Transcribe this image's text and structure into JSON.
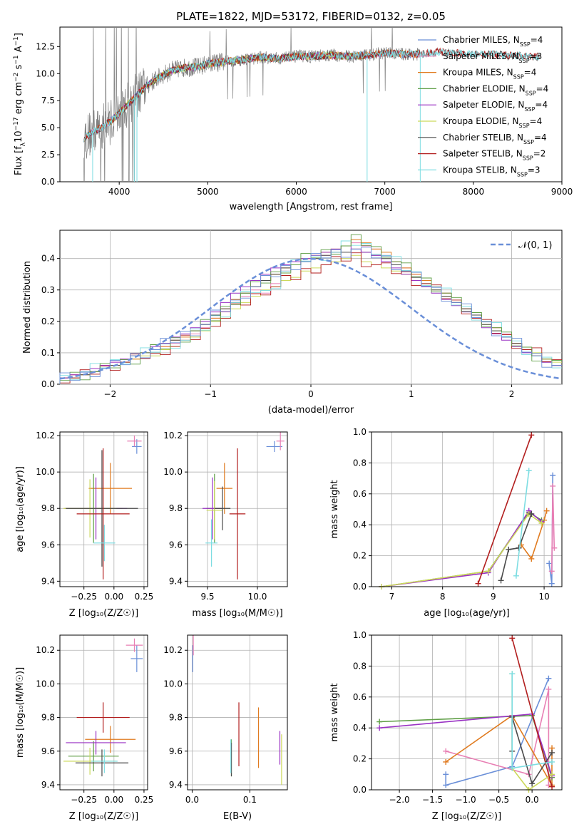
{
  "title": "PLATE=1822, MJD=53172, FIBERID=0132, z=0.05",
  "colors": {
    "Chabrier MILES": "#6a8fd8",
    "Salpeter MILES": "#e87fb4",
    "Kroupa MILES": "#e07b20",
    "Chabrier ELODIE": "#5f9e46",
    "Salpeter ELODIE": "#9a32c4",
    "Kroupa ELODIE": "#ccd95a",
    "Chabrier STELIB": "#4a4a4a",
    "Salpeter STELIB": "#b21e1e",
    "Kroupa STELIB": "#7ddde2",
    "data": "#808080",
    "gaussian": "#6a8fd8"
  },
  "chart_data": [
    {
      "id": "spectrum",
      "type": "line",
      "title": "PLATE=1822, MJD=53172, FIBERID=0132, z=0.05",
      "xlabel": "wavelength [Angstrom, rest frame]",
      "ylabel_parts": [
        "Flux [f",
        "λ",
        "10",
        "−17",
        " erg cm",
        "−2",
        " s",
        "−1",
        " A",
        "−1",
        "]"
      ],
      "xlim": [
        3330,
        9000
      ],
      "ylim": [
        0,
        14.3
      ],
      "xticks": [
        4000,
        5000,
        6000,
        7000,
        8000,
        9000
      ],
      "yticks": [
        0.0,
        2.5,
        5.0,
        7.5,
        10.0,
        12.5
      ],
      "legend_position": "right",
      "legend": [
        {
          "name": "Chabrier MILES",
          "nssp": "4"
        },
        {
          "name": "Salpeter MILES",
          "nssp": "3"
        },
        {
          "name": "Kroupa MILES",
          "nssp": "4"
        },
        {
          "name": "Chabrier ELODIE",
          "nssp": "4"
        },
        {
          "name": "Salpeter ELODIE",
          "nssp": "4"
        },
        {
          "name": "Kroupa ELODIE",
          "nssp": "4"
        },
        {
          "name": "Chabrier STELIB",
          "nssp": "4"
        },
        {
          "name": "Salpeter STELIB",
          "nssp": "2"
        },
        {
          "name": "Kroupa STELIB",
          "nssp": "3"
        }
      ],
      "continuum": {
        "x": [
          3600,
          3700,
          3800,
          3900,
          4000,
          4100,
          4200,
          4300,
          4400,
          4500,
          4600,
          4700,
          4800,
          4900,
          5000,
          5200,
          5400,
          5600,
          5800,
          6000,
          6200,
          6400,
          6600,
          6800,
          7000,
          7200,
          7400,
          7600,
          7800,
          8000,
          8200,
          8400,
          8600,
          8750
        ],
        "y": [
          4.0,
          4.6,
          5.0,
          5.6,
          6.3,
          7.2,
          8.0,
          8.8,
          9.4,
          9.9,
          10.3,
          10.5,
          10.6,
          10.6,
          10.9,
          11.1,
          11.3,
          11.5,
          11.4,
          11.6,
          11.6,
          11.7,
          11.6,
          11.7,
          11.9,
          11.8,
          11.8,
          12.0,
          11.9,
          11.8,
          11.8,
          11.7,
          11.6,
          11.5
        ]
      }
    },
    {
      "id": "residuals",
      "type": "bar",
      "xlabel": "(data-model)/error",
      "ylabel": "Normed distribution",
      "xlim": [
        -2.5,
        2.5
      ],
      "ylim": [
        0,
        0.49
      ],
      "xticks": [
        -2,
        -1,
        0,
        1,
        2
      ],
      "yticks": [
        0.0,
        0.1,
        0.2,
        0.3,
        0.4
      ],
      "legend_label": "𝒩(0, 1)",
      "legend_position": "top-right",
      "bins": {
        "start": -2.5,
        "width": 0.1
      },
      "series": [
        {
          "values": [
            0.02,
            0.02,
            0.03,
            0.04,
            0.05,
            0.06,
            0.07,
            0.08,
            0.09,
            0.09,
            0.11,
            0.12,
            0.14,
            0.15,
            0.17,
            0.2,
            0.21,
            0.24,
            0.26,
            0.28,
            0.3,
            0.31,
            0.33,
            0.34,
            0.36,
            0.37,
            0.38,
            0.39,
            0.4,
            0.41,
            0.39,
            0.38,
            0.37,
            0.36,
            0.35,
            0.33,
            0.32,
            0.3,
            0.28,
            0.26,
            0.24,
            0.21,
            0.19,
            0.17,
            0.15,
            0.13,
            0.11,
            0.1,
            0.08,
            0.07
          ]
        },
        {
          "values": [
            0.02,
            0.03,
            0.04,
            0.05,
            0.06,
            0.07,
            0.08,
            0.09,
            0.1,
            0.11,
            0.12,
            0.13,
            0.14,
            0.16,
            0.18,
            0.21,
            0.23,
            0.26,
            0.28,
            0.3,
            0.29,
            0.32,
            0.36,
            0.38,
            0.4,
            0.4,
            0.41,
            0.42,
            0.44,
            0.45,
            0.44,
            0.43,
            0.41,
            0.39,
            0.37,
            0.35,
            0.33,
            0.31,
            0.29,
            0.26,
            0.24,
            0.22,
            0.2,
            0.18,
            0.16,
            0.13,
            0.11,
            0.09,
            0.07,
            0.06
          ]
        },
        {
          "values": [
            0.02,
            0.03,
            0.03,
            0.04,
            0.05,
            0.06,
            0.07,
            0.08,
            0.1,
            0.11,
            0.12,
            0.14,
            0.15,
            0.17,
            0.19,
            0.21,
            0.24,
            0.27,
            0.29,
            0.31,
            0.33,
            0.35,
            0.37,
            0.38,
            0.4,
            0.41,
            0.42,
            0.43,
            0.44,
            0.46,
            0.45,
            0.43,
            0.42,
            0.39,
            0.37,
            0.35,
            0.33,
            0.31,
            0.29,
            0.26,
            0.24,
            0.22,
            0.2,
            0.18,
            0.15,
            0.13,
            0.11,
            0.09,
            0.08,
            0.06
          ]
        },
        {
          "values": [
            0.02,
            0.02,
            0.03,
            0.04,
            0.05,
            0.06,
            0.07,
            0.09,
            0.1,
            0.11,
            0.13,
            0.14,
            0.16,
            0.17,
            0.19,
            0.22,
            0.24,
            0.26,
            0.29,
            0.31,
            0.33,
            0.35,
            0.37,
            0.38,
            0.39,
            0.4,
            0.41,
            0.42,
            0.42,
            0.43,
            0.42,
            0.41,
            0.4,
            0.38,
            0.36,
            0.34,
            0.32,
            0.3,
            0.28,
            0.26,
            0.24,
            0.22,
            0.19,
            0.17,
            0.15,
            0.13,
            0.11,
            0.09,
            0.07,
            0.06
          ]
        },
        {
          "values": [
            0.02,
            0.03,
            0.04,
            0.05,
            0.06,
            0.07,
            0.08,
            0.09,
            0.1,
            0.12,
            0.13,
            0.15,
            0.16,
            0.18,
            0.2,
            0.23,
            0.26,
            0.29,
            0.31,
            0.33,
            0.35,
            0.37,
            0.38,
            0.39,
            0.4,
            0.41,
            0.42,
            0.43,
            0.44,
            0.43,
            0.42,
            0.41,
            0.39,
            0.37,
            0.35,
            0.33,
            0.31,
            0.29,
            0.27,
            0.25,
            0.23,
            0.21,
            0.18,
            0.16,
            0.14,
            0.12,
            0.1,
            0.09,
            0.07,
            0.06
          ]
        }
      ]
    },
    {
      "id": "age-vs-Z",
      "type": "scatter",
      "xlabel": "Z [log₁₀(Z/Z☉)]",
      "ylabel": "age  [log₁₀(age/yr)]",
      "xlim": [
        -0.45,
        0.28
      ],
      "ylim": [
        9.37,
        10.22
      ],
      "xticks": [
        -0.25,
        0.0,
        0.25
      ],
      "yticks": [
        9.4,
        9.6,
        9.8,
        10.0,
        10.2
      ],
      "points": [
        {
          "x": 0.19,
          "y": 10.14,
          "xerr": 0.04,
          "yerr": 0.04
        },
        {
          "x": 0.17,
          "y": 10.17,
          "xerr": 0.06,
          "yerr": 0.03
        },
        {
          "x": -0.03,
          "y": 9.91,
          "xerr": 0.18,
          "yerr": 0.14
        },
        {
          "x": -0.17,
          "y": 9.8,
          "xerr": 0.24,
          "yerr": 0.19
        },
        {
          "x": -0.15,
          "y": 9.8,
          "xerr": 0.26,
          "yerr": 0.17
        },
        {
          "x": -0.2,
          "y": 9.8,
          "xerr": 0.22,
          "yerr": 0.16
        },
        {
          "x": -0.1,
          "y": 9.8,
          "xerr": 0.3,
          "yerr": 0.32
        },
        {
          "x": -0.09,
          "y": 9.77,
          "xerr": 0.22,
          "yerr": 0.36
        },
        {
          "x": -0.08,
          "y": 9.61,
          "xerr": 0.09,
          "yerr": 0.1
        }
      ]
    },
    {
      "id": "age-vs-mass",
      "type": "scatter",
      "xlabel": "mass [log₁₀(M/M☉)]",
      "ylabel": "",
      "xlim": [
        9.3,
        10.3
      ],
      "ylim": [
        9.37,
        10.22
      ],
      "xticks": [
        9.5,
        10.0
      ],
      "yticks": [
        9.4,
        9.6,
        9.8,
        10.0,
        10.2
      ],
      "points": [
        {
          "x": 10.17,
          "y": 10.14,
          "xerr": 0.08,
          "yerr": 0.03
        },
        {
          "x": 10.23,
          "y": 10.17,
          "xerr": 0.04,
          "yerr": 0.05
        },
        {
          "x": 9.67,
          "y": 9.91,
          "xerr": 0.08,
          "yerr": 0.14
        },
        {
          "x": 9.57,
          "y": 9.8,
          "xerr": 0.08,
          "yerr": 0.19
        },
        {
          "x": 9.55,
          "y": 9.8,
          "xerr": 0.1,
          "yerr": 0.17
        },
        {
          "x": 9.57,
          "y": 9.79,
          "xerr": 0.08,
          "yerr": 0.16
        },
        {
          "x": 9.65,
          "y": 9.8,
          "xerr": 0.08,
          "yerr": 0.12
        },
        {
          "x": 9.8,
          "y": 9.77,
          "xerr": 0.08,
          "yerr": 0.36
        },
        {
          "x": 9.54,
          "y": 9.61,
          "xerr": 0.06,
          "yerr": 0.13
        }
      ]
    },
    {
      "id": "massweight-vs-age",
      "type": "line",
      "xlabel": "age  [log₁₀(age/yr)]",
      "ylabel": "mass weight",
      "xlim": [
        6.6,
        10.35
      ],
      "ylim": [
        0,
        1.0
      ],
      "xticks": [
        7,
        8,
        9,
        10
      ],
      "yticks": [
        0.0,
        0.2,
        0.4,
        0.6,
        0.8,
        1.0
      ],
      "series": [
        {
          "x": [
            10.1,
            10.15,
            10.17
          ],
          "y": [
            0.15,
            0.02,
            0.72
          ]
        },
        {
          "x": [
            10.15,
            10.17,
            10.2
          ],
          "y": [
            0.1,
            0.65,
            0.25
          ]
        },
        {
          "x": [
            9.55,
            9.75,
            10.0,
            10.05
          ],
          "y": [
            0.27,
            0.18,
            0.43,
            0.49
          ]
        },
        {
          "x": [
            6.8,
            8.9,
            9.7,
            9.95
          ],
          "y": [
            0.0,
            0.1,
            0.48,
            0.43
          ]
        },
        {
          "x": [
            6.8,
            8.9,
            9.7,
            9.95
          ],
          "y": [
            0.0,
            0.09,
            0.49,
            0.42
          ]
        },
        {
          "x": [
            6.8,
            8.9,
            9.7,
            9.95
          ],
          "y": [
            0.0,
            0.1,
            0.47,
            0.41
          ]
        },
        {
          "x": [
            9.15,
            9.3,
            9.5,
            9.75
          ],
          "y": [
            0.04,
            0.24,
            0.25,
            0.47
          ]
        },
        {
          "x": [
            8.7,
            9.75
          ],
          "y": [
            0.02,
            0.98
          ]
        },
        {
          "x": [
            9.45,
            9.7
          ],
          "y": [
            0.07,
            0.75
          ]
        }
      ]
    },
    {
      "id": "mass-vs-Z",
      "type": "scatter",
      "xlabel": "Z [log₁₀(Z/Z☉)]",
      "ylabel": "mass [log₁₀(M/M☉)]",
      "xlim": [
        -0.45,
        0.28
      ],
      "ylim": [
        9.37,
        10.29
      ],
      "xticks": [
        -0.25,
        0.0,
        0.25
      ],
      "yticks": [
        9.4,
        9.6,
        9.8,
        10.0,
        10.2
      ],
      "points": [
        {
          "x": 0.19,
          "y": 10.15,
          "xerr": 0.05,
          "yerr": 0.08
        },
        {
          "x": 0.17,
          "y": 10.23,
          "xerr": 0.07,
          "yerr": 0.04
        },
        {
          "x": -0.03,
          "y": 9.67,
          "xerr": 0.21,
          "yerr": 0.08
        },
        {
          "x": -0.17,
          "y": 9.57,
          "xerr": 0.21,
          "yerr": 0.09
        },
        {
          "x": -0.15,
          "y": 9.65,
          "xerr": 0.25,
          "yerr": 0.07
        },
        {
          "x": -0.2,
          "y": 9.54,
          "xerr": 0.22,
          "yerr": 0.08
        },
        {
          "x": -0.1,
          "y": 9.53,
          "xerr": 0.22,
          "yerr": 0.08
        },
        {
          "x": -0.09,
          "y": 9.8,
          "xerr": 0.22,
          "yerr": 0.09
        },
        {
          "x": -0.08,
          "y": 9.54,
          "xerr": 0.11,
          "yerr": 0.07
        }
      ]
    },
    {
      "id": "mass-vs-ebv",
      "type": "scatter",
      "xlabel": "E(B-V)",
      "ylabel": "",
      "xlim": [
        -0.008,
        0.165
      ],
      "ylim": [
        9.37,
        10.29
      ],
      "xticks": [
        0.0,
        0.1
      ],
      "yticks": [
        9.4,
        9.6,
        9.8,
        10.0,
        10.2
      ],
      "points": [
        {
          "x": 0.001,
          "y": 10.15,
          "yerr": 0.08
        },
        {
          "x": 0.002,
          "y": 10.23,
          "yerr": 0.06
        },
        {
          "x": 0.115,
          "y": 9.68,
          "yerr": 0.18
        },
        {
          "x": 0.068,
          "y": 9.56,
          "yerr": 0.11
        },
        {
          "x": 0.152,
          "y": 9.62,
          "yerr": 0.1
        },
        {
          "x": 0.155,
          "y": 9.55,
          "yerr": 0.15
        },
        {
          "x": 0.068,
          "y": 9.55,
          "yerr": 0.1
        },
        {
          "x": 0.081,
          "y": 9.7,
          "yerr": 0.19
        },
        {
          "x": 0.067,
          "y": 9.57,
          "yerr": 0.1
        }
      ]
    },
    {
      "id": "massweight-vs-Z",
      "type": "line",
      "xlabel": "Z [log₁₀(Z/Z☉)]",
      "ylabel": "mass weight",
      "xlim": [
        -2.42,
        0.45
      ],
      "ylim": [
        0,
        1.0
      ],
      "xticks": [
        -2.0,
        -1.5,
        -1.0,
        -0.5,
        0.0
      ],
      "yticks": [
        0.0,
        0.2,
        0.4,
        0.6,
        0.8,
        1.0
      ],
      "series": [
        {
          "x": [
            -1.3,
            -1.3,
            -0.3,
            0.25
          ],
          "y": [
            0.1,
            0.03,
            0.15,
            0.72
          ]
        },
        {
          "x": [
            -1.3,
            -0.05,
            0.25,
            0.25
          ],
          "y": [
            0.25,
            0.1,
            0.65,
            0.03
          ]
        },
        {
          "x": [
            -1.3,
            -0.3,
            0.3,
            0.3
          ],
          "y": [
            0.18,
            0.48,
            0.03,
            0.27
          ]
        },
        {
          "x": [
            -2.3,
            0.0,
            0.3
          ],
          "y": [
            0.44,
            0.48,
            0.08
          ]
        },
        {
          "x": [
            -2.3,
            0.0,
            0.3
          ],
          "y": [
            0.4,
            0.49,
            0.09
          ]
        },
        {
          "x": [
            -0.3,
            -0.3,
            -0.05,
            0.3
          ],
          "y": [
            0.75,
            0.14,
            0.0,
            0.1
          ]
        },
        {
          "x": [
            -0.3,
            -0.3,
            0.0,
            0.3
          ],
          "y": [
            0.25,
            0.47,
            0.04,
            0.24
          ]
        },
        {
          "x": [
            -0.3,
            0.3
          ],
          "y": [
            0.98,
            0.02
          ]
        },
        {
          "x": [
            -0.3,
            -0.3,
            0.3
          ],
          "y": [
            0.75,
            0.14,
            0.18
          ]
        }
      ]
    }
  ]
}
